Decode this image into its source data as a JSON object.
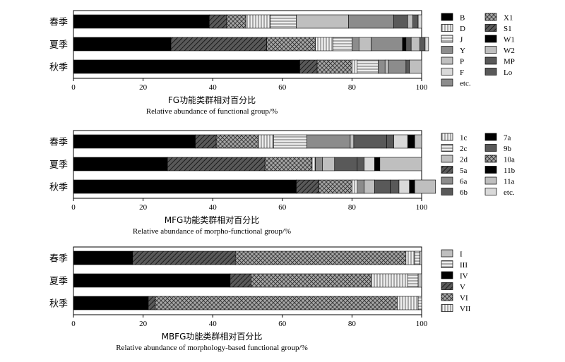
{
  "colors": {
    "black": "#000000",
    "darkgray": "#595959",
    "midgray": "#8c8c8c",
    "lightgray": "#bfbfbf",
    "palegray": "#d9d9d9",
    "white": "#ffffff"
  },
  "chart_data": [
    {
      "type": "bar",
      "orientation": "horizontal",
      "stacked": true,
      "title": "FG功能类群相对百分比",
      "subtitle": "Relative abundance of functional group/%",
      "categories": [
        "春季",
        "夏季",
        "秋季"
      ],
      "xlim": [
        0,
        100
      ],
      "xticks": [
        0,
        20,
        40,
        60,
        80,
        100
      ],
      "legend_position": "right",
      "legend_columns": [
        [
          "B",
          "D",
          "J",
          "Y",
          "P",
          "F",
          "etc."
        ],
        [
          "X1",
          "S1",
          "W1",
          "W2",
          "MP",
          "Lo"
        ]
      ],
      "series": [
        {
          "name": "B",
          "fill": "black",
          "values": [
            39,
            28,
            65
          ]
        },
        {
          "name": "S1",
          "fill": "dark-hatch",
          "values": [
            5,
            27.5,
            5
          ]
        },
        {
          "name": "X1",
          "fill": "crosshatch",
          "values": [
            5.5,
            14,
            10
          ]
        },
        {
          "name": "D",
          "fill": "vline",
          "values": [
            7,
            5,
            1.5
          ]
        },
        {
          "name": "J",
          "fill": "hline",
          "values": [
            7.5,
            5.5,
            6
          ]
        },
        {
          "name": "Y",
          "fill": "midgray",
          "values": [
            0,
            2,
            2
          ]
        },
        {
          "name": "W2",
          "fill": "lightgray",
          "values": [
            15,
            3.5,
            1
          ]
        },
        {
          "name": "etc.",
          "fill": "midgray",
          "values": [
            13,
            9,
            5
          ]
        },
        {
          "name": "W1",
          "fill": "black",
          "values": [
            0,
            1,
            0
          ]
        },
        {
          "name": "Lo",
          "fill": "darkgray",
          "values": [
            4,
            1.5,
            1
          ]
        },
        {
          "name": "P",
          "fill": "lightgray",
          "values": [
            1.5,
            2.5,
            3.5
          ]
        },
        {
          "name": "MP",
          "fill": "darkgray",
          "values": [
            1.5,
            1.5,
            0
          ]
        },
        {
          "name": "F",
          "fill": "palegray",
          "values": [
            1,
            1,
            0
          ]
        }
      ]
    },
    {
      "type": "bar",
      "orientation": "horizontal",
      "stacked": true,
      "title": "MFG功能类群相对百分比",
      "subtitle": "Relative abundance of morpho-functional group/%",
      "categories": [
        "春季",
        "夏季",
        "秋季"
      ],
      "xlim": [
        0,
        100
      ],
      "xticks": [
        0,
        20,
        40,
        60,
        80,
        100
      ],
      "legend_position": "right",
      "legend_columns": [
        [
          "1c",
          "2c",
          "2d",
          "5a",
          "6a",
          "6b"
        ],
        [
          "7a",
          "9b",
          "10a",
          "11b",
          "11a",
          "etc."
        ]
      ],
      "series": [
        {
          "name": "7a",
          "fill": "black",
          "values": [
            35,
            27,
            64
          ]
        },
        {
          "name": "5a",
          "fill": "dark-hatch",
          "values": [
            6,
            28,
            6.5
          ]
        },
        {
          "name": "10a",
          "fill": "crosshatch",
          "values": [
            12,
            13.5,
            9.5
          ]
        },
        {
          "name": "1c",
          "fill": "vline",
          "values": [
            4.5,
            1,
            1.5
          ]
        },
        {
          "name": "2c",
          "fill": "hline",
          "values": [
            9.5,
            0,
            0
          ]
        },
        {
          "name": "6a",
          "fill": "midgray",
          "values": [
            12.5,
            2,
            2
          ]
        },
        {
          "name": "2d",
          "fill": "lightgray",
          "values": [
            1,
            3.5,
            3
          ]
        },
        {
          "name": "6b",
          "fill": "darkgray",
          "values": [
            9.5,
            6.5,
            4.5
          ]
        },
        {
          "name": "9b",
          "fill": "darkgray",
          "values": [
            2,
            2,
            2.5
          ]
        },
        {
          "name": "etc.",
          "fill": "palegray",
          "values": [
            4,
            3,
            3
          ]
        },
        {
          "name": "11b",
          "fill": "black",
          "values": [
            2,
            1.5,
            1.5
          ]
        },
        {
          "name": "11a",
          "fill": "lightgray",
          "values": [
            2,
            12,
            6
          ]
        }
      ]
    },
    {
      "type": "bar",
      "orientation": "horizontal",
      "stacked": true,
      "title": "MBFG功能类群相对百分比",
      "subtitle": "Relative abundance of morphology-based functional group/%",
      "categories": [
        "春季",
        "夏季",
        "秋季"
      ],
      "xlim": [
        0,
        100
      ],
      "xticks": [
        0,
        20,
        40,
        60,
        80,
        100
      ],
      "legend_position": "right",
      "legend_columns": [
        [
          "I",
          "III",
          "IV",
          "V",
          "VI",
          "VII"
        ]
      ],
      "series": [
        {
          "name": "IV",
          "fill": "black",
          "values": [
            17,
            45,
            21.5
          ]
        },
        {
          "name": "V",
          "fill": "dark-hatch",
          "values": [
            29.5,
            6,
            2
          ]
        },
        {
          "name": "VI",
          "fill": "crosshatch",
          "values": [
            49,
            34.5,
            69.5
          ]
        },
        {
          "name": "VII",
          "fill": "vline",
          "values": [
            2.5,
            10.5,
            6
          ]
        },
        {
          "name": "III",
          "fill": "hline",
          "values": [
            1.5,
            3,
            1
          ]
        },
        {
          "name": "I",
          "fill": "lightgray",
          "values": [
            0.5,
            1,
            0
          ]
        }
      ]
    }
  ]
}
